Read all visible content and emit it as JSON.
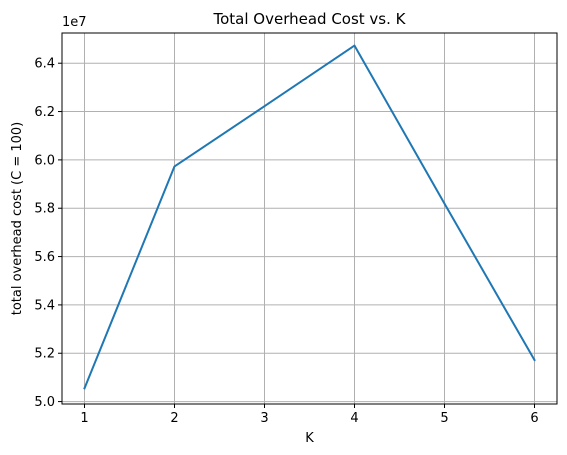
{
  "chart_data": {
    "type": "line",
    "title": "Total Overhead Cost vs. K",
    "xlabel": "K",
    "ylabel": "total overhead cost (C = 100)",
    "y_offset_label": "1e7",
    "y_scale": 10000000,
    "x": [
      1,
      2,
      3,
      4,
      5,
      6
    ],
    "series": [
      {
        "values": [
          50550000,
          59730000,
          62220000,
          64730000,
          58190000,
          51720000
        ],
        "color": "#1f77b4"
      }
    ],
    "xlim": [
      0.75,
      6.25
    ],
    "ylim": [
      49900000,
      65250000
    ],
    "x_ticks": [
      "1",
      "2",
      "3",
      "4",
      "5",
      "6"
    ],
    "y_ticks": [
      "5.0",
      "5.2",
      "5.4",
      "5.6",
      "5.8",
      "6.0",
      "6.2",
      "6.4"
    ],
    "grid": true,
    "legend": "none"
  }
}
